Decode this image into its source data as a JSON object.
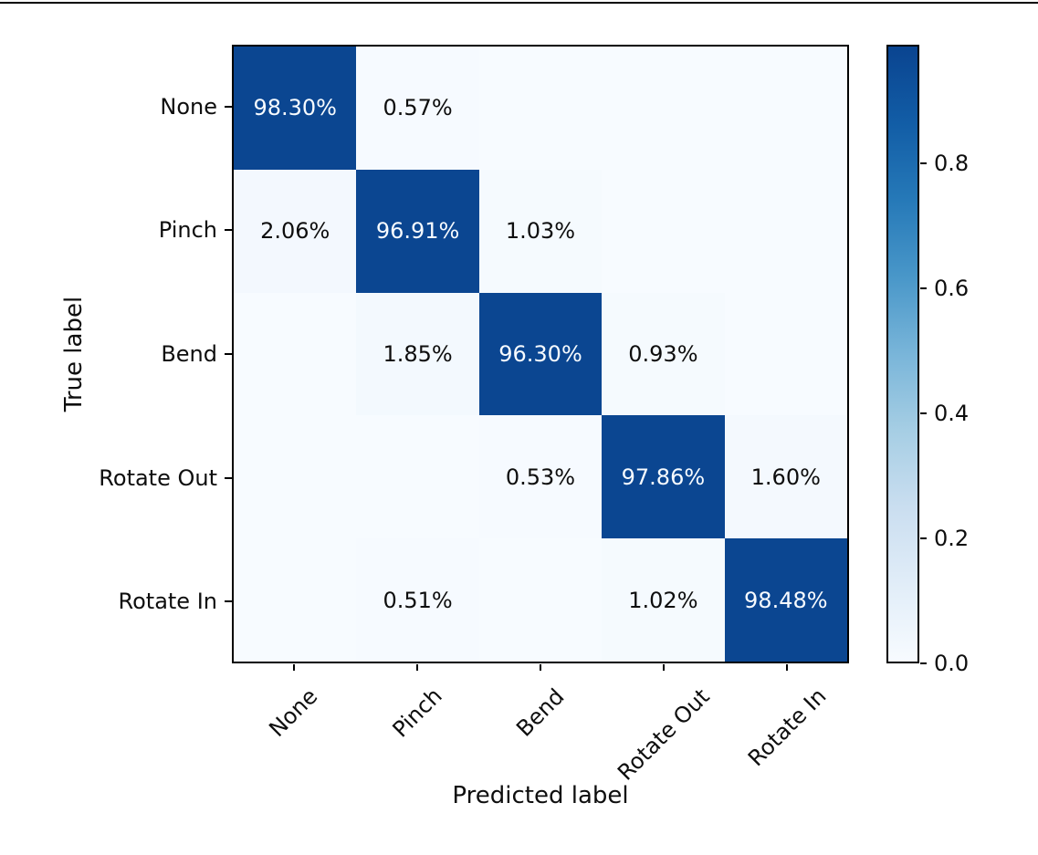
{
  "chart_data": {
    "type": "heatmap",
    "subtype": "confusion-matrix",
    "colormap": "Blues",
    "title": "",
    "xlabel": "Predicted label",
    "ylabel": "True label",
    "categories": [
      "None",
      "Pinch",
      "Bend",
      "Rotate Out",
      "Rotate In"
    ],
    "x_tick_labels": [
      "None",
      "Pinch",
      "Bend",
      "Rotate Out",
      "Rotate In"
    ],
    "y_tick_labels": [
      "None",
      "Pinch",
      "Bend",
      "Rotate Out",
      "Rotate In"
    ],
    "matrix_percent": [
      [
        98.3,
        0.57,
        null,
        null,
        null
      ],
      [
        2.06,
        96.91,
        1.03,
        null,
        null
      ],
      [
        null,
        1.85,
        96.3,
        0.93,
        null
      ],
      [
        null,
        null,
        0.53,
        97.86,
        1.6
      ],
      [
        null,
        0.51,
        null,
        1.02,
        98.48
      ]
    ],
    "cell_labels": [
      [
        "98.30%",
        "0.57%",
        "",
        "",
        ""
      ],
      [
        "2.06%",
        "96.91%",
        "1.03%",
        "",
        ""
      ],
      [
        "",
        "1.85%",
        "96.30%",
        "0.93%",
        ""
      ],
      [
        "",
        "",
        "0.53%",
        "97.86%",
        "1.60%"
      ],
      [
        "",
        "0.51%",
        "",
        "1.02%",
        "98.48%"
      ]
    ],
    "colorbar": {
      "position": "right",
      "tick_labels": [
        "0.0",
        "0.2",
        "0.4",
        "0.6",
        "0.8"
      ],
      "tick_values": [
        0.0,
        0.2,
        0.4,
        0.6,
        0.8
      ],
      "vmin": 0.0,
      "vmax": 0.99
    },
    "colors": {
      "cell_high": "#0b4691",
      "cell_low": "#f7fbff",
      "cell_low_step": "#deebf7",
      "diag_text": "#f7fbff",
      "offdiag_text": "#0e0e0e",
      "axes_edge": "#000000"
    },
    "grid": false,
    "legend_position": "none"
  }
}
